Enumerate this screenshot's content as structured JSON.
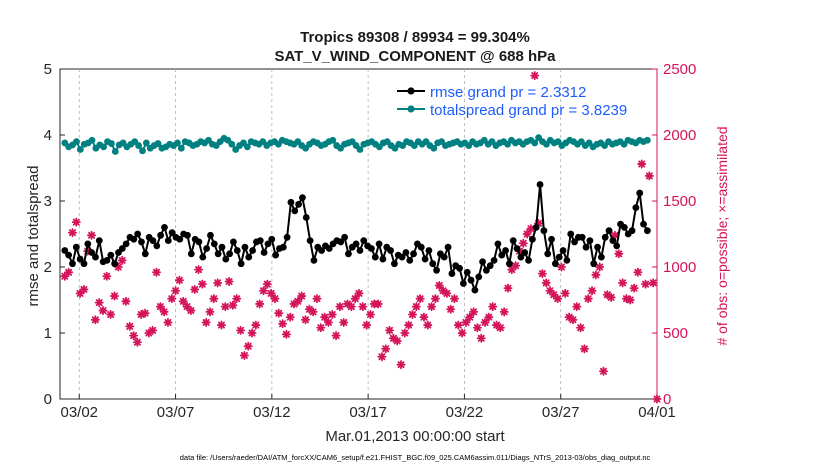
{
  "chart_data": {
    "type": "line",
    "title_line1": "Tropics 89308 / 89934 = 99.304%",
    "title_line2": "SAT_V_WIND_COMPONENT @ 688 hPa",
    "xlabel": "Mar.01,2013 00:00:00 start",
    "ylabel_left": "rmse and totalspread",
    "ylabel_right": "# of obs: o=possible; ×=assimilated",
    "footer": "data file: /Users/raeder/DAI/ATM_forcXX/CAM6_setup/f.e21.FHIST_BGC.f09_025.CAM6assim.011/Diags_NTrS_2013-03/obs_diag_output.nc",
    "xlim": [
      0,
      31
    ],
    "ylim_left": [
      0,
      5
    ],
    "ylim_right": [
      0,
      2500
    ],
    "x_ticks": [
      {
        "x": 1,
        "label": "03/02"
      },
      {
        "x": 6,
        "label": "03/07"
      },
      {
        "x": 11,
        "label": "03/12"
      },
      {
        "x": 16,
        "label": "03/17"
      },
      {
        "x": 21,
        "label": "03/22"
      },
      {
        "x": 26,
        "label": "03/27"
      },
      {
        "x": 31,
        "label": "04/01"
      }
    ],
    "y_ticks_left": [
      "0",
      "1",
      "2",
      "3",
      "4",
      "5"
    ],
    "y_ticks_right": [
      "0",
      "500",
      "1000",
      "1500",
      "2000",
      "2500"
    ],
    "series": [
      {
        "name": "rmse grand pr = 2.3312",
        "color": "#000000",
        "marker": "dot",
        "values": [
          2.25,
          2.18,
          2.05,
          2.3,
          2.12,
          2.05,
          2.35,
          2.22,
          2.15,
          2.4,
          2.08,
          2.1,
          2.18,
          2.05,
          2.22,
          2.28,
          2.35,
          2.45,
          2.42,
          2.5,
          2.38,
          2.2,
          2.45,
          2.4,
          2.32,
          2.48,
          2.6,
          2.4,
          2.52,
          2.45,
          2.42,
          2.5,
          2.48,
          2.2,
          2.42,
          2.38,
          2.15,
          2.28,
          2.48,
          2.35,
          2.2,
          2.3,
          2.12,
          2.2,
          2.38,
          2.25,
          2.05,
          2.3,
          2.15,
          2.25,
          2.38,
          2.4,
          2.22,
          2.35,
          2.42,
          2.18,
          2.28,
          2.3,
          2.45,
          2.98,
          2.85,
          2.95,
          3.05,
          2.75,
          2.4,
          2.1,
          2.3,
          2.25,
          2.32,
          2.28,
          2.35,
          2.4,
          2.38,
          2.45,
          2.2,
          2.3,
          2.35,
          2.25,
          2.4,
          2.32,
          2.28,
          2.15,
          2.35,
          2.12,
          2.3,
          2.25,
          2.05,
          2.18,
          2.15,
          2.22,
          2.1,
          2.2,
          2.35,
          2.3,
          2.12,
          2.25,
          2.05,
          1.95,
          2.2,
          2.15,
          2.3,
          1.9,
          2.02,
          1.98,
          1.75,
          1.92,
          1.8,
          1.65,
          1.85,
          2.08,
          1.95,
          2.02,
          2.1,
          2.35,
          2.18,
          2.25,
          2.05,
          2.4,
          2.28,
          2.15,
          2.22,
          2.1,
          2.42,
          2.6,
          3.25,
          2.55,
          2.2,
          2.42,
          2.05,
          2.15,
          2.25,
          2.1,
          2.5,
          2.38,
          2.45,
          2.45,
          2.3,
          2.4,
          2.05,
          2.3,
          2.15,
          2.45,
          2.55,
          2.4,
          2.32,
          2.65,
          2.6,
          2.5,
          2.55,
          2.9,
          3.12,
          2.65,
          2.55
        ]
      },
      {
        "name": "totalspread grand pr = 3.8239",
        "color": "#008080",
        "marker": "dot",
        "values": [
          3.88,
          3.82,
          3.85,
          3.9,
          3.78,
          3.86,
          3.88,
          3.92,
          3.8,
          3.85,
          3.82,
          3.9,
          3.87,
          3.75,
          3.85,
          3.88,
          3.82,
          3.86,
          3.9,
          3.84,
          3.76,
          3.88,
          3.8,
          3.84,
          3.87,
          3.8,
          3.82,
          3.86,
          3.84,
          3.88,
          3.8,
          3.9,
          3.88,
          3.84,
          3.86,
          3.9,
          3.88,
          3.92,
          3.86,
          3.84,
          3.9,
          3.95,
          3.92,
          3.86,
          3.78,
          3.84,
          3.88,
          3.82,
          3.9,
          3.88,
          3.86,
          3.9,
          3.84,
          3.88,
          3.9,
          3.86,
          3.92,
          3.9,
          3.88,
          3.86,
          3.9,
          3.84,
          3.8,
          3.86,
          3.9,
          3.88,
          3.84,
          3.86,
          3.9,
          3.92,
          3.84,
          3.8,
          3.86,
          3.88,
          3.9,
          3.84,
          3.78,
          3.86,
          3.88,
          3.9,
          3.86,
          3.82,
          3.88,
          3.9,
          3.84,
          3.8,
          3.86,
          3.84,
          3.9,
          3.88,
          3.84,
          3.9,
          3.86,
          3.9,
          3.84,
          3.8,
          3.88,
          3.9,
          3.84,
          3.86,
          3.88,
          3.9,
          3.86,
          3.88,
          3.84,
          3.9,
          3.86,
          3.88,
          3.92,
          3.86,
          3.9,
          3.84,
          3.88,
          3.9,
          3.86,
          3.92,
          3.88,
          3.9,
          3.86,
          3.9,
          3.92,
          3.88,
          3.96,
          3.9,
          3.86,
          3.92,
          3.88,
          3.9,
          3.84,
          3.88,
          3.92,
          3.9,
          3.86,
          3.9,
          3.84,
          3.88,
          3.82,
          3.86,
          3.88,
          3.84,
          3.9,
          3.86,
          3.88,
          3.9,
          3.86,
          3.92,
          3.9,
          3.88,
          3.92,
          3.9,
          3.92
        ]
      },
      {
        "name": "# of obs",
        "color": "#d4145a",
        "marker": "asterisk",
        "values": [
          930,
          960,
          1260,
          1340,
          800,
          830,
          1120,
          1240,
          600,
          730,
          670,
          930,
          640,
          780,
          1000,
          1050,
          740,
          550,
          480,
          430,
          640,
          650,
          500,
          520,
          960,
          700,
          660,
          580,
          760,
          820,
          900,
          740,
          700,
          670,
          830,
          980,
          870,
          580,
          660,
          760,
          880,
          560,
          700,
          890,
          710,
          760,
          520,
          330,
          400,
          500,
          560,
          720,
          820,
          870,
          800,
          760,
          650,
          570,
          490,
          620,
          720,
          740,
          780,
          600,
          680,
          660,
          760,
          540,
          620,
          580,
          640,
          480,
          700,
          580,
          720,
          700,
          760,
          800,
          700,
          560,
          640,
          720,
          720,
          320,
          380,
          520,
          460,
          440,
          260,
          500,
          560,
          640,
          700,
          760,
          620,
          560,
          700,
          760,
          860,
          820,
          800,
          680,
          760,
          560,
          500,
          580,
          620,
          660,
          540,
          460,
          580,
          620,
          700,
          560,
          540,
          660,
          840,
          980,
          1010,
          1120,
          1180,
          1250,
          1290,
          2450,
          1330,
          950,
          880,
          820,
          790,
          760,
          1000,
          800,
          620,
          600,
          700,
          540,
          380,
          760,
          820,
          940,
          1000,
          210,
          790,
          770,
          1240,
          1100,
          880,
          760,
          750,
          840,
          960,
          1780,
          870,
          1690,
          880,
          0
        ]
      }
    ],
    "legend_position": "top-right"
  }
}
